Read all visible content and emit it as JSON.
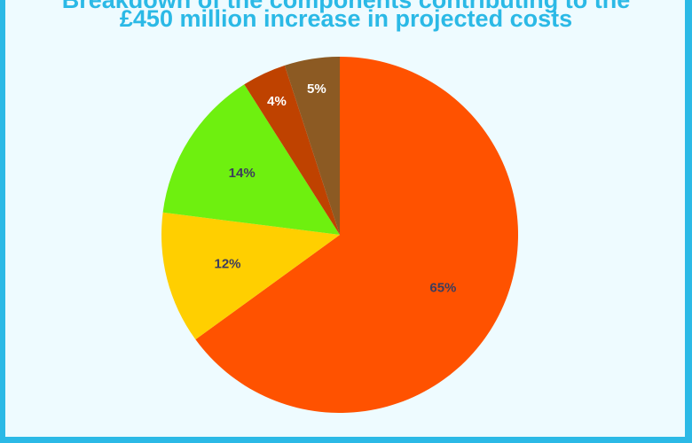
{
  "chart_data": {
    "type": "pie",
    "title_line1": "Breakdown of the components contributing to the",
    "title": "£450 million increase in projected costs",
    "slices": [
      {
        "value": 65,
        "label": "65%",
        "color": "#ff5200",
        "label_color": "#3d3d5c"
      },
      {
        "value": 12,
        "label": "12%",
        "color": "#ffcf00",
        "label_color": "#3d3d5c"
      },
      {
        "value": 14,
        "label": "14%",
        "color": "#6ef00f",
        "label_color": "#3d3d5c"
      },
      {
        "value": 4,
        "label": "4%",
        "color": "#bf4200",
        "label_color": "#ffffff"
      },
      {
        "value": 5,
        "label": "5%",
        "color": "#8c5a23",
        "label_color": "#ffffff"
      }
    ]
  }
}
